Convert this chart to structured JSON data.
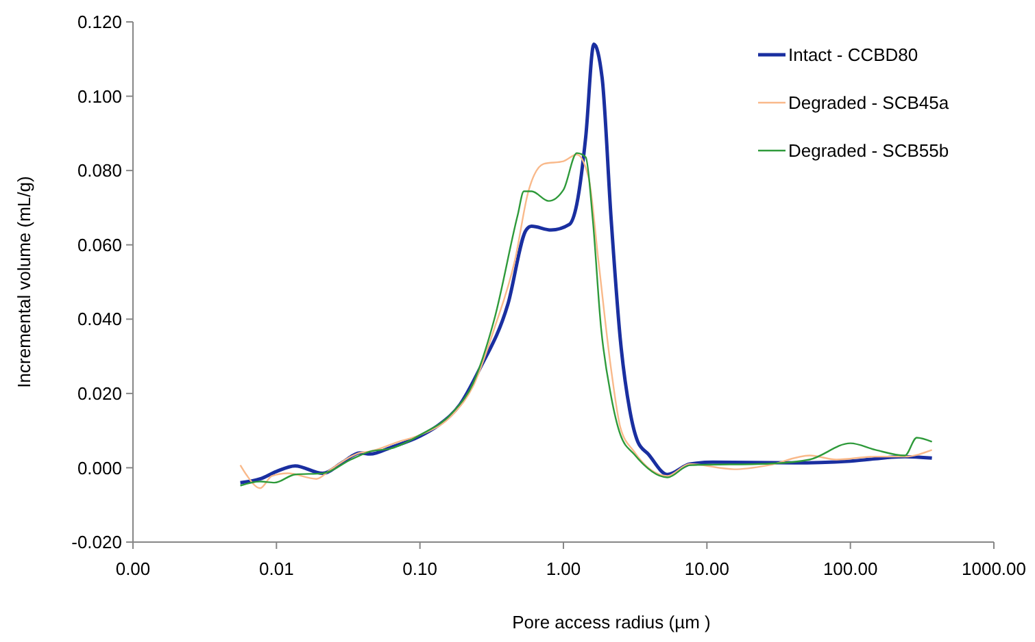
{
  "chart_data": {
    "type": "line",
    "xlabel": "Pore access radius (µm )",
    "ylabel": "Incremental volume (mL/g)",
    "log": "x",
    "xlim": [
      0.001,
      1000
    ],
    "xticks": [
      {
        "value": 0.001,
        "label": "0.00"
      },
      {
        "value": 0.01,
        "label": "0.01"
      },
      {
        "value": 0.1,
        "label": "0.10"
      },
      {
        "value": 1,
        "label": "1.00"
      },
      {
        "value": 10,
        "label": "10.00"
      },
      {
        "value": 100,
        "label": "100.00"
      },
      {
        "value": 1000,
        "label": "1000.00"
      }
    ],
    "ylim": [
      -0.02,
      0.12
    ],
    "yticks": [
      {
        "value": -0.02,
        "label": "-0.020"
      },
      {
        "value": 0,
        "label": "0.000"
      },
      {
        "value": 0.02,
        "label": "0.020"
      },
      {
        "value": 0.04,
        "label": "0.040"
      },
      {
        "value": 0.06,
        "label": "0.060"
      },
      {
        "value": 0.08,
        "label": "0.080"
      },
      {
        "value": 0.1,
        "label": "0.100"
      },
      {
        "value": 0.12,
        "label": "0.120"
      }
    ],
    "grid": false,
    "legend": "top right",
    "marker": "none",
    "line_style": "solid",
    "series": [
      {
        "name": "Intact - CCBD80",
        "color": "#1a2fa0",
        "x": [
          0.0056,
          0.0077,
          0.01,
          0.0135,
          0.021,
          0.029,
          0.038,
          0.045,
          0.063,
          0.1,
          0.135,
          0.19,
          0.26,
          0.41,
          0.55,
          0.6,
          0.82,
          1.1,
          1.24,
          1.43,
          1.63,
          1.86,
          2.15,
          2.5,
          2.9,
          3.3,
          3.9,
          5.3,
          7.6,
          11,
          41,
          100,
          240,
          370
        ],
        "values": [
          -0.004,
          -0.003,
          -0.001,
          0.0005,
          -0.0015,
          0.0015,
          0.004,
          0.0037,
          0.0055,
          0.0085,
          0.0115,
          0.017,
          0.0265,
          0.044,
          0.064,
          0.065,
          0.064,
          0.0655,
          0.071,
          0.089,
          0.114,
          0.105,
          0.067,
          0.034,
          0.0155,
          0.007,
          0.0037,
          -0.0018,
          0.001,
          0.0015,
          0.0013,
          0.0018,
          0.003,
          0.0026
        ]
      },
      {
        "name": "Degraded - SCB45a",
        "color": "#f9b98a",
        "x": [
          0.0056,
          0.0062,
          0.0077,
          0.0093,
          0.012,
          0.019,
          0.024,
          0.033,
          0.038,
          0.045,
          0.071,
          0.1,
          0.17,
          0.235,
          0.33,
          0.46,
          0.57,
          0.73,
          1.0,
          1.24,
          1.5,
          1.75,
          2.15,
          2.5,
          3.1,
          5.3,
          7.6,
          15.5,
          27,
          52,
          80,
          150,
          240,
          370
        ],
        "values": [
          0.0007,
          -0.002,
          -0.0055,
          -0.0022,
          -0.0015,
          -0.003,
          -0.0004,
          0.003,
          0.004,
          0.0044,
          0.007,
          0.0088,
          0.0144,
          0.022,
          0.0375,
          0.056,
          0.0744,
          0.0818,
          0.0825,
          0.0843,
          0.078,
          0.056,
          0.0265,
          0.0107,
          0.0044,
          -0.0022,
          0.001,
          -0.0004,
          0.0007,
          0.0033,
          0.0022,
          0.003,
          0.003,
          0.0048
        ]
      },
      {
        "name": "Degraded - SCB55b",
        "color": "#2e9a3a",
        "x": [
          0.0056,
          0.0077,
          0.0097,
          0.0135,
          0.021,
          0.033,
          0.045,
          0.063,
          0.1,
          0.17,
          0.235,
          0.33,
          0.48,
          0.53,
          0.6,
          0.79,
          1.0,
          1.24,
          1.43,
          1.6,
          1.83,
          2.15,
          2.5,
          3.1,
          5.3,
          7.6,
          27,
          52,
          100,
          150,
          240,
          290,
          370
        ],
        "values": [
          -0.0048,
          -0.0037,
          -0.004,
          -0.0018,
          -0.0015,
          0.0022,
          0.0044,
          0.0052,
          0.0088,
          0.015,
          0.0228,
          0.04,
          0.068,
          0.0744,
          0.0744,
          0.0718,
          0.0748,
          0.0847,
          0.0836,
          0.067,
          0.0376,
          0.0192,
          0.0088,
          0.0037,
          -0.0026,
          0.0007,
          0.0011,
          0.0022,
          0.0066,
          0.0048,
          0.0033,
          0.0081,
          0.007
        ]
      }
    ]
  }
}
